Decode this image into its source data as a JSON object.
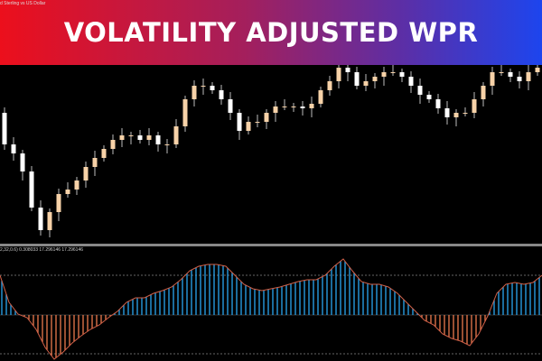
{
  "banner": {
    "title": "VOLATILITY ADJUSTED WPR",
    "gradient": [
      "#ec0f1c",
      "#1d45ee"
    ]
  },
  "chart": {
    "symbol": "d Sterling vs US Dollar",
    "closes": [
      175,
      140,
      130,
      110,
      70,
      45,
      65,
      85,
      90,
      100,
      115,
      125,
      135,
      145,
      150,
      150,
      145,
      150,
      140,
      140,
      160,
      190,
      205,
      205,
      200,
      190,
      175,
      155,
      165,
      165,
      175,
      182,
      182,
      182,
      180,
      185,
      200,
      210,
      225,
      220,
      205,
      210,
      215,
      220,
      220,
      215,
      205,
      195,
      190,
      180,
      170,
      175,
      175,
      190,
      205,
      220,
      220,
      215,
      210,
      220,
      225
    ],
    "bull_color": "#f7d2a8",
    "bear_color": "#ffffff"
  },
  "indicator": {
    "label": "2,32,0.6) 0.308033 17.296146 17.296146",
    "levels": [
      44,
      0,
      -43
    ],
    "values": [
      44,
      14,
      1,
      -3,
      -16,
      -36,
      -49,
      -41,
      -31,
      -23,
      -16,
      -11,
      -3,
      4,
      14,
      19,
      19,
      24,
      27,
      31,
      39,
      49,
      54,
      56,
      56,
      54,
      44,
      34,
      29,
      27,
      29,
      31,
      34,
      37,
      39,
      39,
      44,
      54,
      62,
      49,
      37,
      34,
      34,
      31,
      24,
      14,
      4,
      -6,
      -11,
      -21,
      -26,
      -29,
      -34,
      -21,
      -1,
      24,
      34,
      36,
      34,
      36,
      44
    ],
    "pos_color": "#2aa6f0",
    "neg_color": "#ec7a4e"
  }
}
